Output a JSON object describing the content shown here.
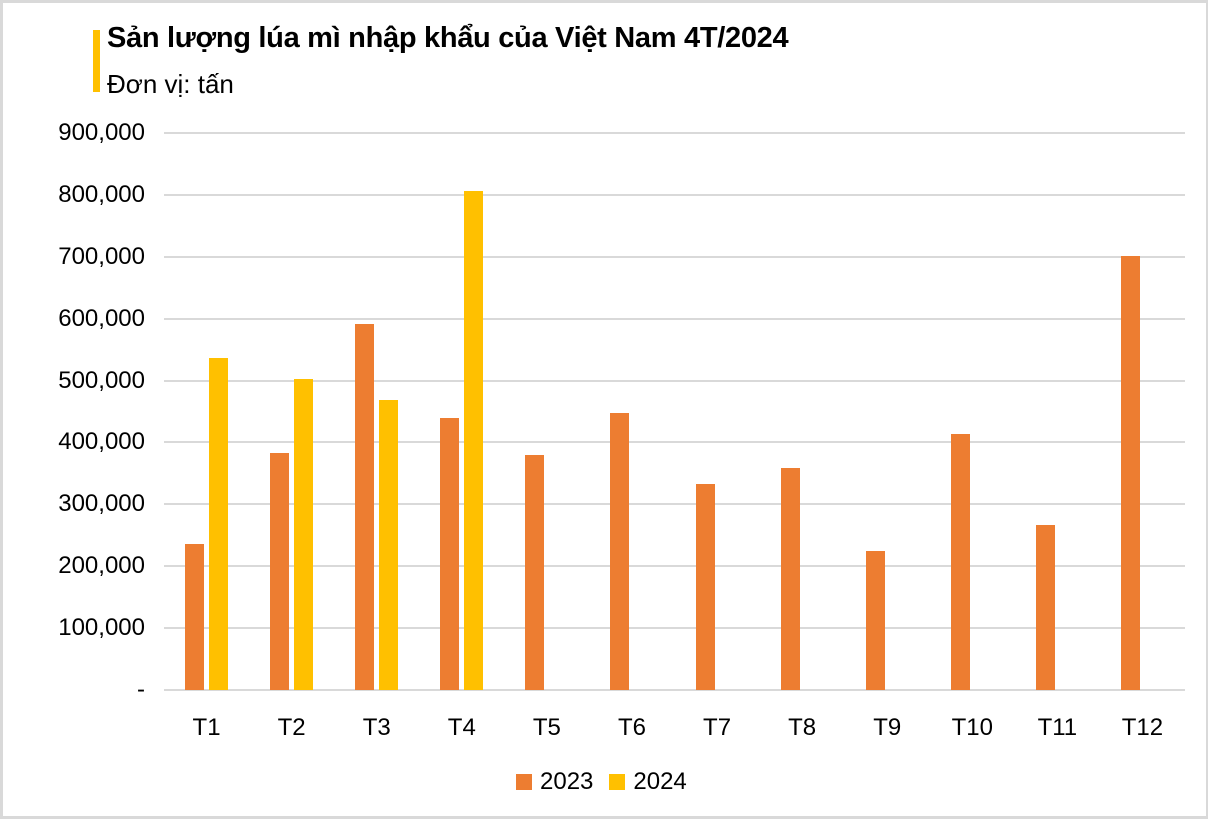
{
  "title": "Sản lượng lúa mì nhập khẩu của Việt Nam 4T/2024",
  "subtitle": "Đơn vị: tấn",
  "colors": {
    "accent": "#ffc000",
    "series_2023": "#ed7d31",
    "series_2024": "#ffc000",
    "grid": "#d9d9d9"
  },
  "yaxis": {
    "ticks": [
      "900,000",
      "800,000",
      "700,000",
      "600,000",
      "500,000",
      "400,000",
      "300,000",
      "200,000",
      "100,000",
      "-"
    ]
  },
  "legend": [
    {
      "label": "2023",
      "color": "#ed7d31"
    },
    {
      "label": "2024",
      "color": "#ffc000"
    }
  ],
  "chart_data": {
    "type": "bar",
    "title": "Sản lượng lúa mì nhập khẩu của Việt Nam 4T/2024",
    "subtitle": "Đơn vị: tấn",
    "xlabel": "",
    "ylabel": "",
    "categories": [
      "T1",
      "T2",
      "T3",
      "T4",
      "T5",
      "T6",
      "T7",
      "T8",
      "T9",
      "T10",
      "T11",
      "T12"
    ],
    "series": [
      {
        "name": "2023",
        "color": "#ed7d31",
        "values": [
          236000,
          383000,
          592000,
          440000,
          379000,
          447000,
          333000,
          359000,
          225000,
          414000,
          267000,
          701000
        ]
      },
      {
        "name": "2024",
        "color": "#ffc000",
        "values": [
          536000,
          503000,
          468000,
          807000,
          null,
          null,
          null,
          null,
          null,
          null,
          null,
          null
        ]
      }
    ],
    "ylim": [
      0,
      900000
    ],
    "yticks": [
      0,
      100000,
      200000,
      300000,
      400000,
      500000,
      600000,
      700000,
      800000,
      900000
    ],
    "grid": true,
    "legend_position": "bottom"
  }
}
